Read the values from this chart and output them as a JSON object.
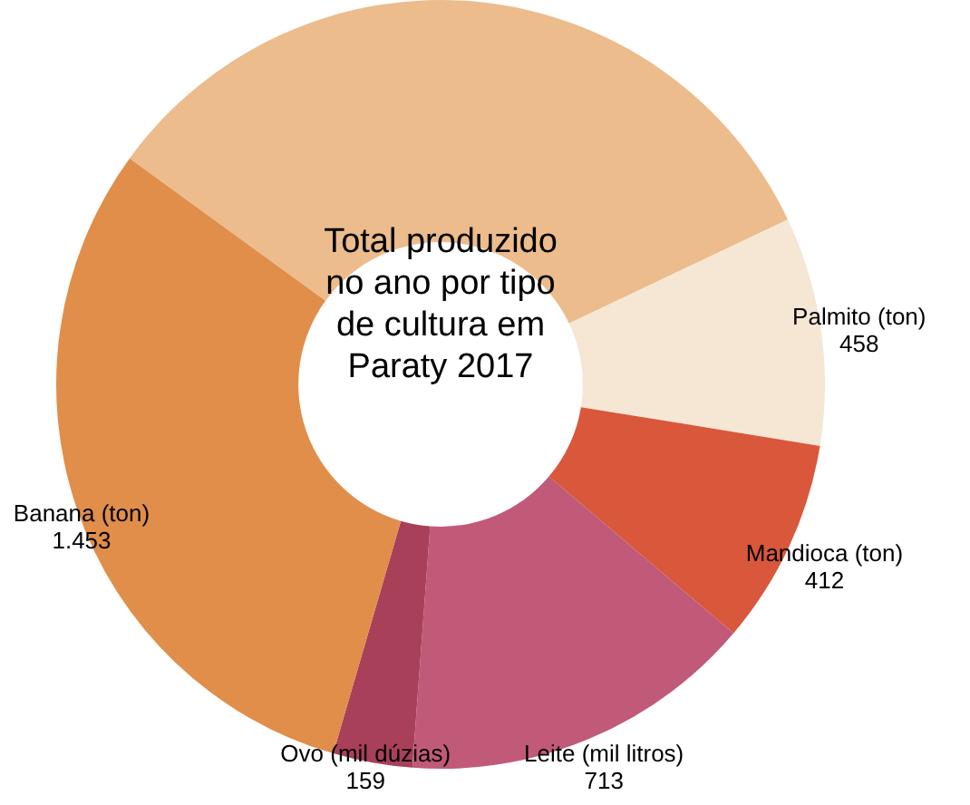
{
  "chart_data": {
    "type": "donut",
    "title": "Total produzido no ano por tipo de cultura em Paraty 2017",
    "categories": [
      null,
      "Palmito (ton)",
      "Mandioca (ton)",
      "Leite (mil litros)",
      "Ovo (mil dúzias)",
      "Banana (ton)"
    ],
    "values": [
      1570,
      458,
      412,
      713,
      159,
      1453
    ],
    "value_labels": [
      null,
      "458",
      "412",
      "713",
      "159",
      "1.453"
    ],
    "colors": [
      "#ecbc8c",
      "#f6e6d4",
      "#d9573a",
      "#c15a78",
      "#a8405a",
      "#e08e4a"
    ],
    "legend": false
  }
}
